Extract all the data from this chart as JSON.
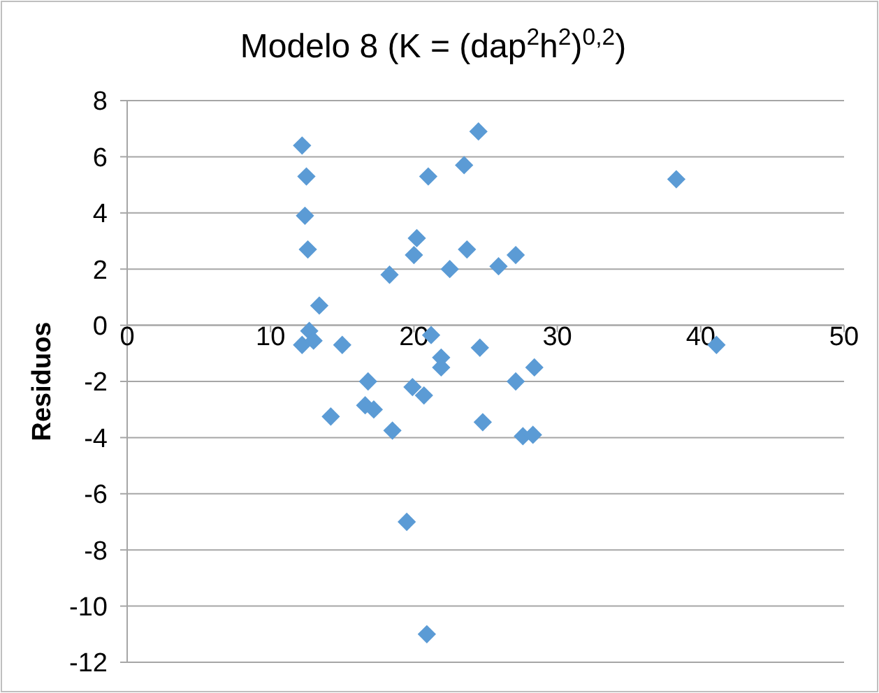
{
  "chart_data": {
    "type": "scatter",
    "title": "Modelo 8 (K = (dap$^{2}$h$^{2}$)$^{0,2}$)",
    "ylabel": "Residuos",
    "x": [
      12.2,
      12.5,
      12.4,
      12.6,
      13.4,
      12.7,
      12.2,
      13.0,
      15.0,
      18.3,
      20.2,
      20.0,
      21.0,
      23.5,
      24.5,
      23.7,
      22.5,
      25.9,
      27.1,
      21.2,
      24.6,
      21.9,
      21.9,
      38.3,
      41.1,
      28.4,
      27.1,
      16.8,
      19.9,
      20.7,
      16.6,
      17.2,
      14.2,
      24.8,
      18.5,
      27.6,
      28.3,
      19.5,
      20.9
    ],
    "values": [
      6.4,
      5.3,
      3.9,
      2.7,
      0.7,
      -0.2,
      -0.7,
      -0.55,
      -0.7,
      1.8,
      3.1,
      2.5,
      5.3,
      5.7,
      6.9,
      2.7,
      2.0,
      2.1,
      2.5,
      -0.35,
      -0.8,
      -1.15,
      -1.5,
      5.2,
      -0.7,
      -1.5,
      -2.0,
      -2.0,
      -2.2,
      -2.5,
      -2.85,
      -3.0,
      -3.25,
      -3.45,
      -3.75,
      -3.95,
      -3.9,
      -7.0,
      -11.0
    ],
    "color": "#5b9bd5",
    "marker": "diamond",
    "xlim": [
      0,
      50
    ],
    "xticks": [
      0,
      10,
      20,
      30,
      40,
      50
    ],
    "ylim": [
      -12,
      8
    ],
    "yticks": [
      -12,
      -10,
      -8,
      -6,
      -4,
      -2,
      0,
      2,
      4,
      6,
      8
    ],
    "grid": "y"
  }
}
